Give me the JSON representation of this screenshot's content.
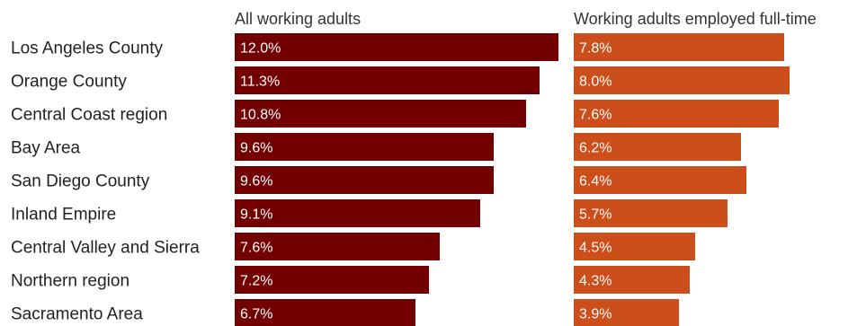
{
  "chart_data": {
    "type": "bar",
    "orientation": "horizontal",
    "categories": [
      "Los Angeles County",
      "Orange County",
      "Central Coast region",
      "Bay Area",
      "San Diego County",
      "Inland Empire",
      "Central Valley and Sierra",
      "Northern region",
      "Sacramento Area"
    ],
    "series": [
      {
        "name": "All working adults",
        "color": "#730000",
        "values": [
          12.0,
          11.3,
          10.8,
          9.6,
          9.6,
          9.1,
          7.6,
          7.2,
          6.7
        ],
        "labels": [
          "12.0%",
          "11.3%",
          "10.8%",
          "9.6%",
          "9.6%",
          "9.1%",
          "7.6%",
          "7.2%",
          "6.7%"
        ]
      },
      {
        "name": "Working adults employed full-time",
        "color": "#cc4e1a",
        "values": [
          7.8,
          8.0,
          7.6,
          6.2,
          6.4,
          5.7,
          4.5,
          4.3,
          3.9
        ],
        "labels": [
          "7.8%",
          "8.0%",
          "7.6%",
          "6.2%",
          "6.4%",
          "5.7%",
          "4.5%",
          "4.3%",
          "3.9%"
        ]
      }
    ],
    "grid": false,
    "legend": "none"
  }
}
